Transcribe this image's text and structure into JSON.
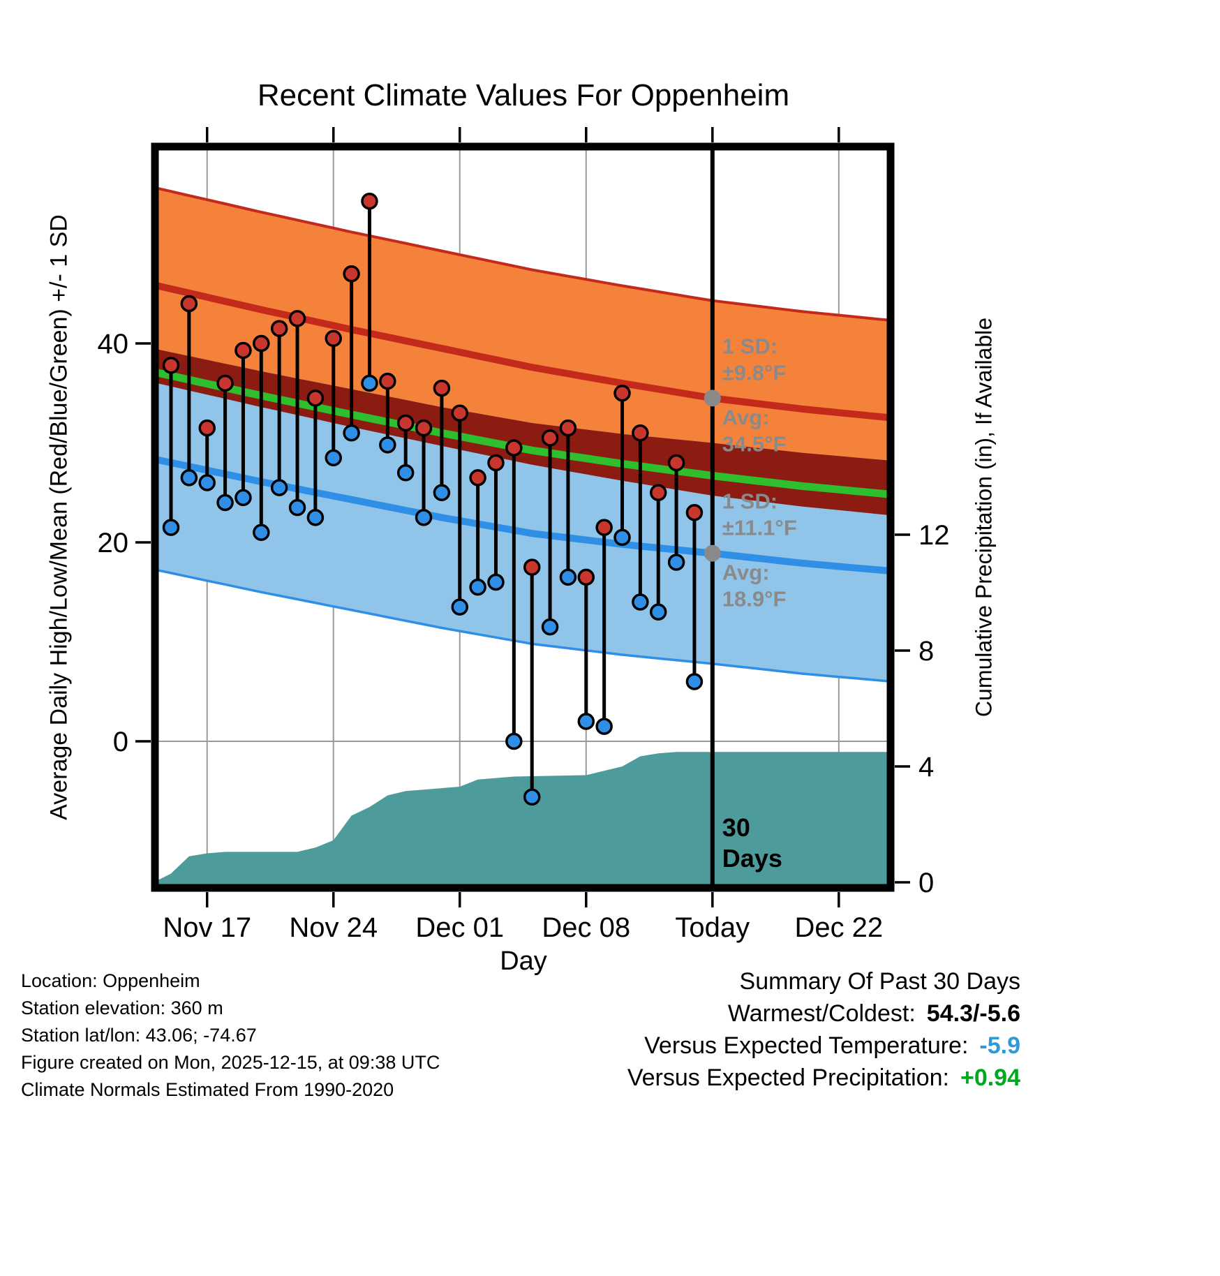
{
  "chart_data": {
    "type": "line",
    "title": "Recent Climate Values For Oppenheim",
    "x_unit": "days since Nov 15",
    "axes": {
      "x_label": "Day",
      "y_left_label": "Average Daily High/Low/Mean (Red/Blue/Green) +/- 1 SD",
      "y_right_label": "Cumulative Precipitation (in), If Available",
      "y_left_ticks": [
        0,
        20,
        40
      ],
      "y_right_ticks": [
        0,
        4,
        8,
        12
      ],
      "x_ticks": [
        {
          "day": 2,
          "label": "Nov 17"
        },
        {
          "day": 9,
          "label": "Nov 24"
        },
        {
          "day": 16,
          "label": "Dec 01"
        },
        {
          "day": 23,
          "label": "Dec 08"
        },
        {
          "day": 30,
          "label": "Today"
        },
        {
          "day": 37,
          "label": "Dec 22"
        }
      ]
    },
    "daily": {
      "start_day": 0,
      "high": [
        37.8,
        44.0,
        31.5,
        36.0,
        39.3,
        40.0,
        41.5,
        42.5,
        34.5,
        40.5,
        47.0,
        54.3,
        36.2,
        32.0,
        31.5,
        35.5,
        33.0,
        26.5,
        28.0,
        29.5,
        17.5,
        30.5,
        31.5,
        16.5,
        21.5,
        35.0,
        31.0,
        25.0,
        28.0,
        23.0
      ],
      "low": [
        21.5,
        26.5,
        26.0,
        24.0,
        24.5,
        21.0,
        25.5,
        23.5,
        22.5,
        28.5,
        31.0,
        36.0,
        29.8,
        27.0,
        22.5,
        25.0,
        13.5,
        15.5,
        16.0,
        0.0,
        -5.6,
        11.5,
        16.5,
        2.0,
        1.5,
        20.5,
        14.0,
        13.0,
        18.0,
        6.0
      ]
    },
    "normals": {
      "days": [
        -1,
        5,
        10,
        15,
        20,
        25,
        30,
        35,
        40
      ],
      "high_avg": [
        45.9,
        43.4,
        41.4,
        39.5,
        37.6,
        36.0,
        34.5,
        33.4,
        32.5
      ],
      "low_avg": [
        28.4,
        26.1,
        24.3,
        22.5,
        20.9,
        19.8,
        18.9,
        17.9,
        17.1
      ],
      "high_sd": 9.8,
      "low_sd": 11.1
    },
    "precip_cumulative": {
      "days": [
        -0.8,
        0,
        1,
        2,
        3,
        7,
        8,
        9,
        10,
        11,
        12,
        13,
        14,
        16,
        17,
        18,
        19,
        23,
        24,
        25,
        26,
        27,
        28,
        40
      ],
      "inches": [
        0.05,
        0.3,
        0.9,
        1.0,
        1.05,
        1.05,
        1.2,
        1.45,
        2.3,
        2.6,
        3.0,
        3.15,
        3.2,
        3.3,
        3.55,
        3.6,
        3.65,
        3.7,
        3.85,
        4.0,
        4.35,
        4.45,
        4.5,
        4.5
      ]
    },
    "today_day": 30
  },
  "annotations": [
    {
      "sd_label": "1 SD:",
      "sd_value": "±9.8°F",
      "avg_label": "Avg:",
      "avg_value": "34.5°F",
      "temp": 34.5
    },
    {
      "sd_label": "1 SD:",
      "sd_value": "±11.1°F",
      "avg_label": "Avg:",
      "avg_value": "18.9°F",
      "temp": 18.9
    }
  ],
  "today_marker": {
    "lines": [
      "30",
      "Days"
    ]
  },
  "colors": {
    "grid": "#9A9A9A",
    "high_band": "#F5823B",
    "high_line": "#C32A1C",
    "overlap_band": "#8C1B12",
    "low_band": "#90C4E9",
    "low_line": "#2F8FE6",
    "mean_line": "#2EBE2E",
    "high_dot": "#C9362D",
    "low_dot": "#2F8FE6",
    "precip_fill": "#4E9B9B",
    "stem": "#000000",
    "today_line": "#000000",
    "annotation": "#8A8A8A"
  },
  "footer": {
    "location": "Location: Oppenheim",
    "elevation": "Station elevation: 360 m",
    "latlon": "Station lat/lon: 43.06; -74.67",
    "created": "Figure created on Mon, 2025-12-15, at 09:38 UTC",
    "normals_note": "Climate Normals Estimated From 1990-2020"
  },
  "summary": {
    "title": "Summary Of Past 30 Days",
    "rows": [
      {
        "label": "Warmest/Coldest:",
        "value": "54.3/-5.6",
        "color": "#000000"
      },
      {
        "label": "Versus Expected Temperature:",
        "value": "-5.9",
        "color": "#2E9BD6"
      },
      {
        "label": "Versus Expected Precipitation:",
        "value": "+0.94",
        "color": "#00A81F"
      }
    ]
  }
}
